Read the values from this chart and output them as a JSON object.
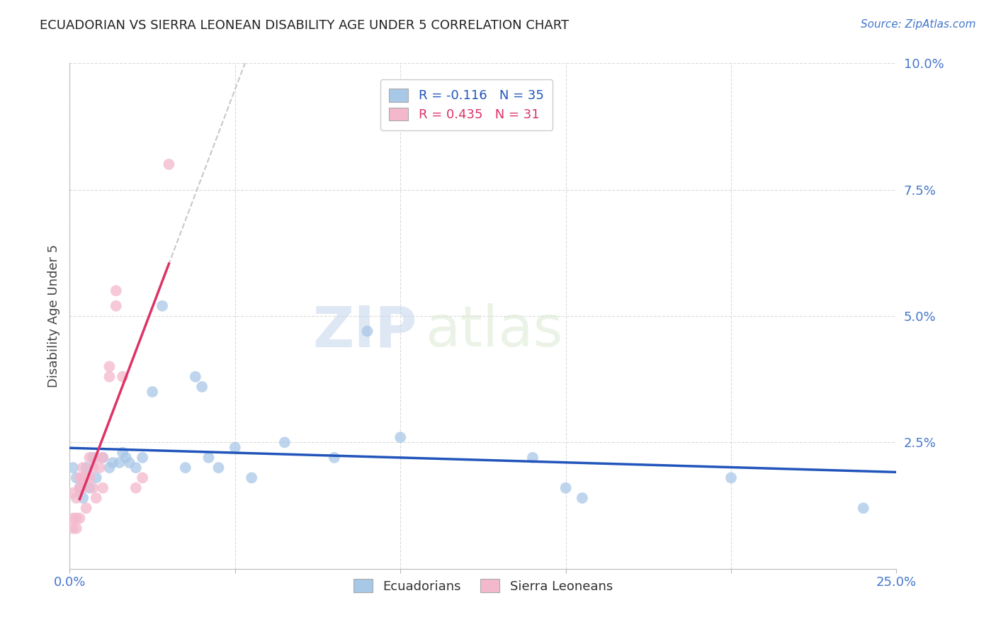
{
  "title": "ECUADORIAN VS SIERRA LEONEAN DISABILITY AGE UNDER 5 CORRELATION CHART",
  "source": "Source: ZipAtlas.com",
  "ylabel": "Disability Age Under 5",
  "xlim": [
    0.0,
    0.25
  ],
  "ylim": [
    0.0,
    0.1
  ],
  "xticks": [
    0.0,
    0.05,
    0.1,
    0.15,
    0.2,
    0.25
  ],
  "yticks": [
    0.0,
    0.025,
    0.05,
    0.075,
    0.1
  ],
  "xticklabels_left": "0.0%",
  "xticklabels_right": "25.0%",
  "yticklabels": [
    "",
    "2.5%",
    "5.0%",
    "7.5%",
    "10.0%"
  ],
  "legend_R_blue": "R = -0.116",
  "legend_N_blue": "N = 35",
  "legend_R_pink": "R = 0.435",
  "legend_N_pink": "N = 31",
  "blue_color": "#a8c8e8",
  "pink_color": "#f4b8cc",
  "blue_line_color": "#2255bb",
  "pink_line_color": "#dd3366",
  "tick_color": "#4477cc",
  "blue_scatter": [
    [
      0.001,
      0.02
    ],
    [
      0.002,
      0.018
    ],
    [
      0.003,
      0.016
    ],
    [
      0.004,
      0.014
    ],
    [
      0.005,
      0.02
    ],
    [
      0.006,
      0.016
    ],
    [
      0.007,
      0.022
    ],
    [
      0.008,
      0.018
    ],
    [
      0.01,
      0.022
    ],
    [
      0.012,
      0.02
    ],
    [
      0.013,
      0.021
    ],
    [
      0.015,
      0.021
    ],
    [
      0.016,
      0.023
    ],
    [
      0.017,
      0.022
    ],
    [
      0.018,
      0.021
    ],
    [
      0.02,
      0.02
    ],
    [
      0.022,
      0.022
    ],
    [
      0.025,
      0.035
    ],
    [
      0.028,
      0.052
    ],
    [
      0.035,
      0.02
    ],
    [
      0.038,
      0.038
    ],
    [
      0.04,
      0.036
    ],
    [
      0.042,
      0.022
    ],
    [
      0.045,
      0.02
    ],
    [
      0.05,
      0.024
    ],
    [
      0.055,
      0.018
    ],
    [
      0.065,
      0.025
    ],
    [
      0.08,
      0.022
    ],
    [
      0.09,
      0.047
    ],
    [
      0.1,
      0.026
    ],
    [
      0.14,
      0.022
    ],
    [
      0.15,
      0.016
    ],
    [
      0.155,
      0.014
    ],
    [
      0.2,
      0.018
    ],
    [
      0.24,
      0.012
    ]
  ],
  "pink_scatter": [
    [
      0.001,
      0.008
    ],
    [
      0.001,
      0.01
    ],
    [
      0.001,
      0.015
    ],
    [
      0.002,
      0.008
    ],
    [
      0.002,
      0.014
    ],
    [
      0.002,
      0.01
    ],
    [
      0.003,
      0.01
    ],
    [
      0.003,
      0.016
    ],
    [
      0.003,
      0.018
    ],
    [
      0.004,
      0.018
    ],
    [
      0.004,
      0.016
    ],
    [
      0.004,
      0.02
    ],
    [
      0.005,
      0.018
    ],
    [
      0.005,
      0.012
    ],
    [
      0.006,
      0.018
    ],
    [
      0.006,
      0.022
    ],
    [
      0.007,
      0.02
    ],
    [
      0.007,
      0.016
    ],
    [
      0.008,
      0.014
    ],
    [
      0.008,
      0.022
    ],
    [
      0.009,
      0.02
    ],
    [
      0.01,
      0.016
    ],
    [
      0.01,
      0.022
    ],
    [
      0.012,
      0.038
    ],
    [
      0.012,
      0.04
    ],
    [
      0.014,
      0.052
    ],
    [
      0.014,
      0.055
    ],
    [
      0.016,
      0.038
    ],
    [
      0.02,
      0.016
    ],
    [
      0.022,
      0.018
    ],
    [
      0.03,
      0.08
    ]
  ],
  "watermark_zip": "ZIP",
  "watermark_atlas": "atlas",
  "background_color": "#ffffff",
  "grid_color": "#cccccc"
}
